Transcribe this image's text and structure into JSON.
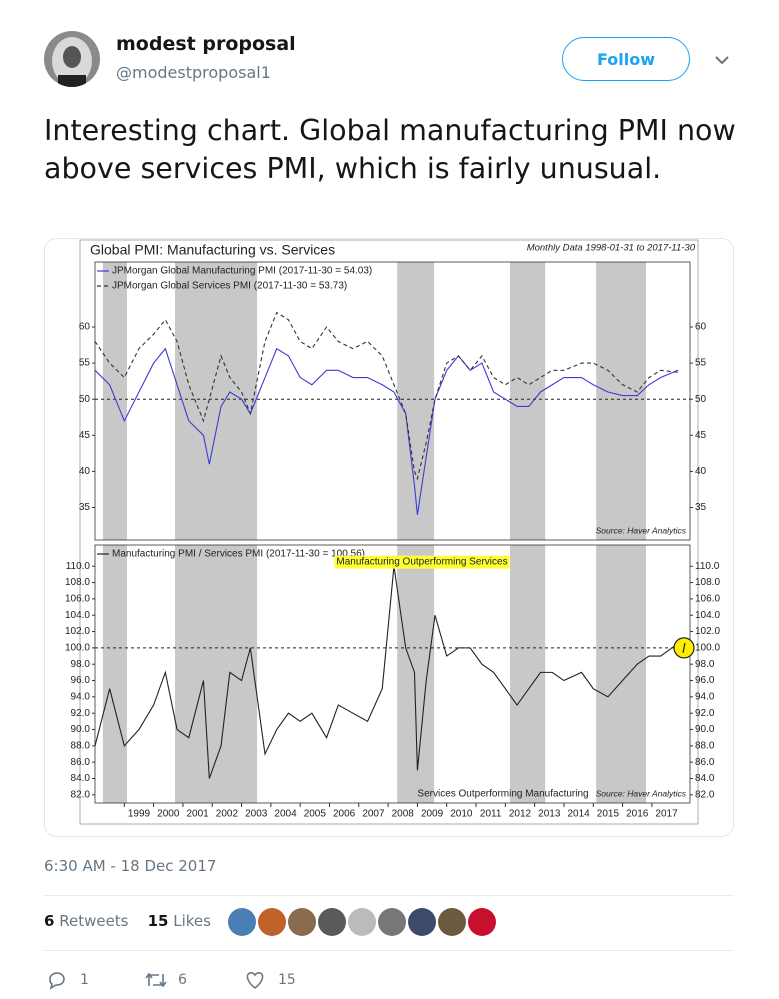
{
  "tweet": {
    "name": "modest proposal",
    "handle": "@modestproposal1",
    "follow": "Follow",
    "text": "Interesting chart. Global manufacturing PMI now above services PMI, which is fairly unusual.",
    "timestamp": "6:30 AM - 18 Dec 2017",
    "retweets": {
      "count": 6,
      "label": "Retweets"
    },
    "likes": {
      "count": 15,
      "label": "Likes"
    },
    "actions": {
      "reply": 1,
      "retweet": 6,
      "like": 15
    }
  },
  "chart_data": [
    {
      "type": "line",
      "title": "Global PMI: Manufacturing vs. Services",
      "subtitle": "Monthly Data 1998-01-31 to 2017-11-30",
      "source": "Source: Haver Analytics",
      "x": [
        1998.0,
        1998.5,
        1999.0,
        1999.5,
        2000.0,
        2000.4,
        2000.8,
        2001.2,
        2001.7,
        2001.9,
        2002.3,
        2002.6,
        2003.0,
        2003.3,
        2003.8,
        2004.2,
        2004.6,
        2005.0,
        2005.4,
        2005.9,
        2006.3,
        2006.8,
        2007.3,
        2007.8,
        2008.2,
        2008.6,
        2008.9,
        2009.0,
        2009.3,
        2009.6,
        2010.0,
        2010.4,
        2010.8,
        2011.2,
        2011.6,
        2012.0,
        2012.4,
        2012.8,
        2013.2,
        2013.6,
        2014.0,
        2014.6,
        2015.0,
        2015.5,
        2016.0,
        2016.5,
        2016.9,
        2017.3,
        2017.9
      ],
      "series": [
        {
          "name": "JPMorgan Global Manufacturing PMI (2017-11-30 = 54.03)",
          "color": "#3b3bd6",
          "dashed": false,
          "values": [
            54,
            52,
            47,
            51,
            55,
            57,
            52,
            47,
            45,
            41,
            49,
            51,
            50,
            48,
            53,
            57,
            56,
            53,
            52,
            54,
            54,
            53,
            53,
            52,
            51,
            48,
            38,
            34,
            42,
            50,
            54,
            56,
            54,
            55,
            51,
            50,
            49,
            49,
            51,
            52,
            53,
            53,
            52,
            51,
            50.5,
            50.5,
            52,
            53,
            54.03
          ]
        },
        {
          "name": "JPMorgan Global Services PMI (2017-11-30 = 53.73)",
          "color": "#333333",
          "dashed": true,
          "values": [
            58,
            55,
            53,
            57,
            59,
            61,
            58,
            52,
            47,
            50,
            56,
            53,
            51,
            48,
            58,
            62,
            61,
            58,
            57,
            60,
            58,
            57,
            58,
            56,
            52,
            48,
            40,
            39,
            44,
            50,
            55,
            56,
            54,
            56,
            53,
            52,
            53,
            52,
            53,
            54,
            54,
            55,
            55,
            54,
            52,
            51,
            53,
            54,
            53.73
          ]
        }
      ],
      "xlim": [
        1998,
        2018.3
      ],
      "ylim": [
        30.5,
        69
      ],
      "yticks": [
        35,
        40,
        45,
        50,
        55,
        60
      ],
      "reference": 50,
      "shaded": [
        [
          1998.27,
          1999.09
        ],
        [
          2000.73,
          2003.53
        ],
        [
          2008.31,
          2009.57
        ],
        [
          2012.16,
          2013.36
        ],
        [
          2015.1,
          2016.8
        ]
      ]
    },
    {
      "type": "line",
      "source": "Source: Haver Analytics",
      "annotations": [
        "Manufacturing Outperforming Services",
        "Services Outperforming Manufacturing"
      ],
      "x": [
        1998.0,
        1998.5,
        1999.0,
        1999.5,
        2000.0,
        2000.4,
        2000.8,
        2001.2,
        2001.7,
        2001.9,
        2002.3,
        2002.6,
        2003.0,
        2003.3,
        2003.8,
        2004.2,
        2004.6,
        2005.0,
        2005.4,
        2005.9,
        2006.3,
        2006.8,
        2007.3,
        2007.8,
        2008.2,
        2008.6,
        2008.9,
        2009.0,
        2009.3,
        2009.6,
        2010.0,
        2010.4,
        2010.8,
        2011.2,
        2011.6,
        2012.0,
        2012.4,
        2012.8,
        2013.2,
        2013.6,
        2014.0,
        2014.6,
        2015.0,
        2015.5,
        2016.0,
        2016.5,
        2016.9,
        2017.3,
        2017.9
      ],
      "series": [
        {
          "name": "Manufacturing PMI / Services PMI (2017-11-30 = 100.56)",
          "color": "#222222",
          "dashed": false,
          "values": [
            88,
            95,
            88,
            90,
            93,
            97,
            90,
            89,
            96,
            84,
            88,
            97,
            96,
            100,
            87,
            90,
            92,
            91,
            92,
            89,
            93,
            92,
            91,
            95,
            110,
            100,
            97,
            85,
            96,
            104,
            99,
            100,
            100,
            98,
            97,
            95,
            93,
            95,
            97,
            97,
            96,
            97,
            95,
            94,
            96,
            98,
            99,
            99,
            100.56
          ]
        }
      ],
      "xlim": [
        1998,
        2018.3
      ],
      "ylim": [
        81,
        112.6
      ],
      "xticks": [
        1999,
        2000,
        2001,
        2002,
        2003,
        2004,
        2005,
        2006,
        2007,
        2008,
        2009,
        2010,
        2011,
        2012,
        2013,
        2014,
        2015,
        2016,
        2017
      ],
      "yticks": [
        {
          "value": 82,
          "label": "82.0"
        },
        {
          "value": 84,
          "label": "84.0"
        },
        {
          "value": 86,
          "label": "86.0"
        },
        {
          "value": 88,
          "label": "88.0"
        },
        {
          "value": 90,
          "label": "90.0"
        },
        {
          "value": 92,
          "label": "92.0"
        },
        {
          "value": 94,
          "label": "94.0"
        },
        {
          "value": 96,
          "label": "96.0"
        },
        {
          "value": 98,
          "label": "98.0"
        },
        {
          "value": 100,
          "label": "100.0"
        },
        {
          "value": 102,
          "label": "102.0"
        },
        {
          "value": 104,
          "label": "104.0"
        },
        {
          "value": 106,
          "label": "106.0"
        },
        {
          "value": 108,
          "label": "108.0"
        },
        {
          "value": 110,
          "label": "110.0"
        }
      ],
      "reference": 100,
      "shaded": [
        [
          1998.27,
          1999.09
        ],
        [
          2000.73,
          2003.53
        ],
        [
          2008.31,
          2009.57
        ],
        [
          2012.16,
          2013.36
        ],
        [
          2015.1,
          2016.8
        ]
      ]
    }
  ]
}
